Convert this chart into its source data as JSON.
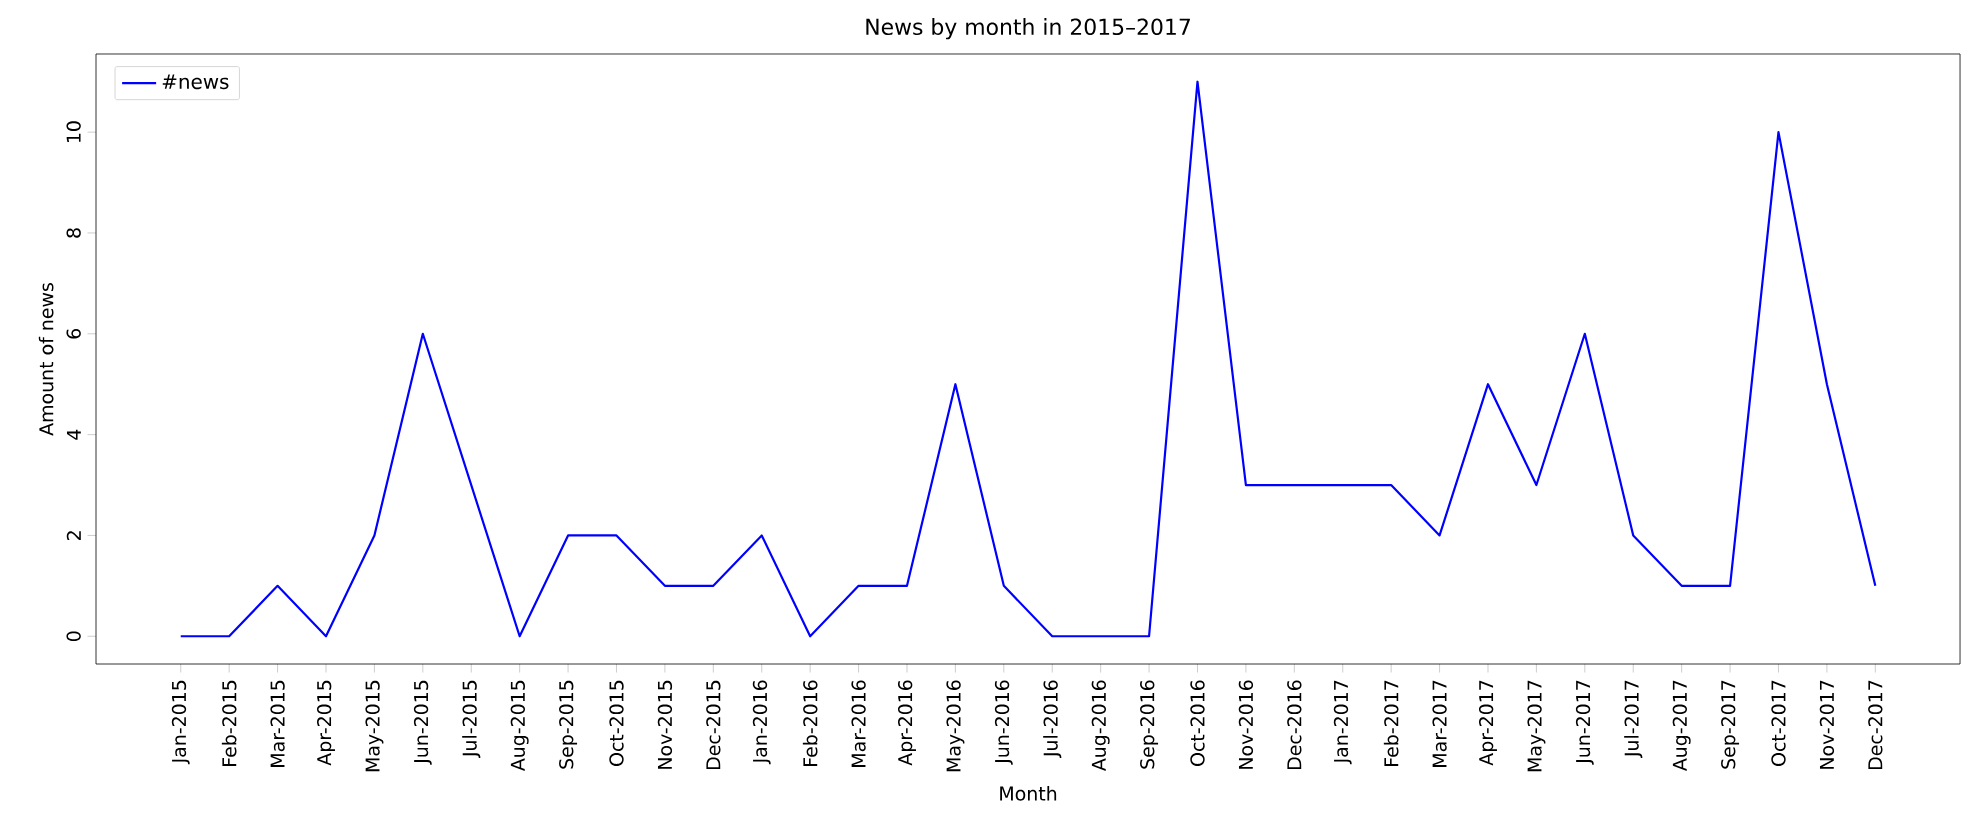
{
  "chart_data": {
    "type": "line",
    "title": "News by month in 2015–2017",
    "xlabel": "Month",
    "ylabel": "Amount of news",
    "categories": [
      "Jan-2015",
      "Feb-2015",
      "Mar-2015",
      "Apr-2015",
      "May-2015",
      "Jun-2015",
      "Jul-2015",
      "Aug-2015",
      "Sep-2015",
      "Oct-2015",
      "Nov-2015",
      "Dec-2015",
      "Jan-2016",
      "Feb-2016",
      "Mar-2016",
      "Apr-2016",
      "May-2016",
      "Jun-2016",
      "Jul-2016",
      "Aug-2016",
      "Sep-2016",
      "Oct-2016",
      "Nov-2016",
      "Dec-2016",
      "Jan-2017",
      "Feb-2017",
      "Mar-2017",
      "Apr-2017",
      "May-2017",
      "Jun-2017",
      "Jul-2017",
      "Aug-2017",
      "Sep-2017",
      "Oct-2017",
      "Nov-2017",
      "Dec-2017"
    ],
    "series": [
      {
        "name": "#news",
        "color": "#0000ff",
        "values": [
          0,
          0,
          1,
          0,
          2,
          6,
          3,
          0,
          2,
          2,
          1,
          1,
          2,
          0,
          1,
          1,
          5,
          1,
          0,
          0,
          0,
          11,
          3,
          3,
          3,
          3,
          2,
          5,
          3,
          6,
          2,
          1,
          1,
          10,
          5,
          1
        ]
      }
    ],
    "ylim": [
      -0.55,
      11.55
    ],
    "yticks": [
      0,
      2,
      4,
      6,
      8,
      10
    ],
    "legend": "top left",
    "line_style": "solid",
    "marker": "none"
  }
}
